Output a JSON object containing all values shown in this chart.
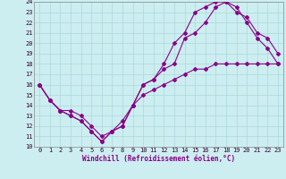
{
  "xlabel": "Windchill (Refroidissement éolien,°C)",
  "xlim": [
    -0.5,
    23.5
  ],
  "ylim": [
    10,
    24
  ],
  "xticks": [
    0,
    1,
    2,
    3,
    4,
    5,
    6,
    7,
    8,
    9,
    10,
    11,
    12,
    13,
    14,
    15,
    16,
    17,
    18,
    19,
    20,
    21,
    22,
    23
  ],
  "yticks": [
    10,
    11,
    12,
    13,
    14,
    15,
    16,
    17,
    18,
    19,
    20,
    21,
    22,
    23,
    24
  ],
  "bg_color": "#cceef0",
  "grid_color": "#aad8dc",
  "line_color": "#880088",
  "line1_x": [
    0,
    1,
    2,
    3,
    4,
    5,
    6,
    7,
    8,
    9,
    10,
    11,
    12,
    13,
    14,
    15,
    16,
    17,
    18,
    19,
    20,
    21,
    22,
    23
  ],
  "line1_y": [
    16,
    14.5,
    13.5,
    13,
    12.5,
    11.5,
    10.5,
    11.5,
    12.0,
    14.0,
    16.0,
    16.5,
    17.5,
    18.0,
    20.5,
    21.0,
    22.0,
    23.5,
    24.0,
    23.0,
    22.5,
    21.0,
    20.5,
    19.0
  ],
  "line2_x": [
    0,
    1,
    2,
    3,
    4,
    5,
    6,
    7,
    8,
    9,
    10,
    11,
    12,
    13,
    14,
    15,
    16,
    17,
    18,
    19,
    20,
    21,
    22,
    23
  ],
  "line2_y": [
    16,
    14.5,
    13.5,
    13,
    12.5,
    11.5,
    10.5,
    11.5,
    12.0,
    14.0,
    16.0,
    16.5,
    18.0,
    20.0,
    21.0,
    23.0,
    23.5,
    24.0,
    24.0,
    23.5,
    22.0,
    20.5,
    19.5,
    18.0
  ],
  "line3_x": [
    0,
    1,
    2,
    3,
    4,
    5,
    6,
    7,
    8,
    9,
    10,
    11,
    12,
    13,
    14,
    15,
    16,
    17,
    18,
    19,
    20,
    21,
    22,
    23
  ],
  "line3_y": [
    16,
    14.5,
    13.5,
    13.5,
    13.0,
    12.0,
    11.0,
    11.5,
    12.5,
    14.0,
    15.0,
    15.5,
    16.0,
    16.5,
    17.0,
    17.5,
    17.5,
    18.0,
    18.0,
    18.0,
    18.0,
    18.0,
    18.0,
    18.0
  ],
  "marker": "D",
  "markersize": 2,
  "linewidth": 0.8,
  "xlabel_fontsize": 5.5,
  "tick_fontsize": 5.0
}
